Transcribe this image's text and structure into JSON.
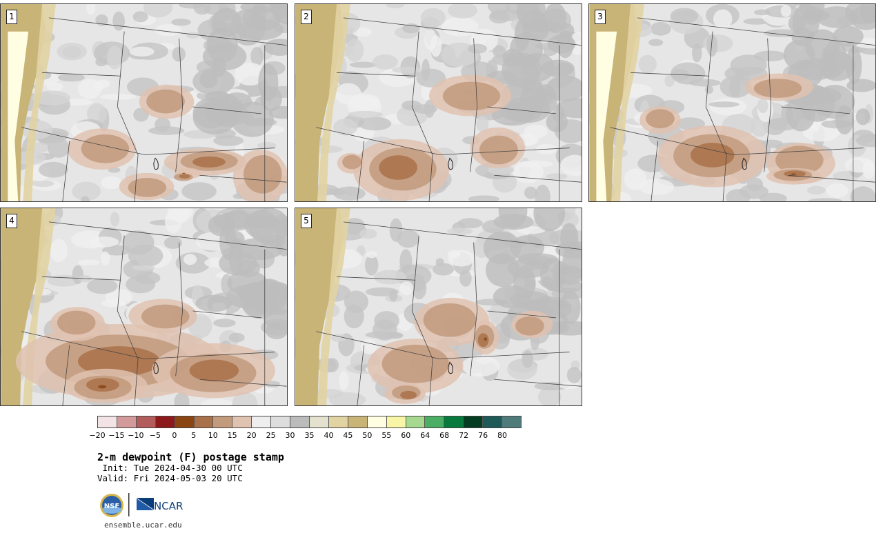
{
  "panels": [
    {
      "label": "1"
    },
    {
      "label": "2"
    },
    {
      "label": "3"
    },
    {
      "label": "4"
    },
    {
      "label": "5"
    }
  ],
  "colorbar": {
    "colors": [
      "#f2e4e4",
      "#d29a9a",
      "#b35c5c",
      "#8c1a1a",
      "#8b4513",
      "#a9714a",
      "#c29a7c",
      "#dfc2b0",
      "#eeeeee",
      "#dddddd",
      "#bbbbbb",
      "#e4e1cf",
      "#e2d3a3",
      "#c8b477",
      "#fffee3",
      "#f8f5a6",
      "#a6d98f",
      "#4cad64",
      "#087a3d",
      "#053d23",
      "#1d5a58",
      "#4f7b7b"
    ],
    "ticks": [
      "−20",
      "−15",
      "−10",
      "−5",
      "0",
      "5",
      "10",
      "15",
      "20",
      "25",
      "30",
      "35",
      "40",
      "45",
      "50",
      "55",
      "60",
      "64",
      "68",
      "72",
      "76",
      "80"
    ]
  },
  "title": "2-m dewpoint (F) postage stamp",
  "init": " Init: Tue 2024-04-30 00 UTC",
  "valid": "Valid: Fri 2024-05-03 20 UTC",
  "logo_text": "NCAR",
  "nsf_text": "NSF",
  "footer_url": "ensemble.ucar.edu"
}
